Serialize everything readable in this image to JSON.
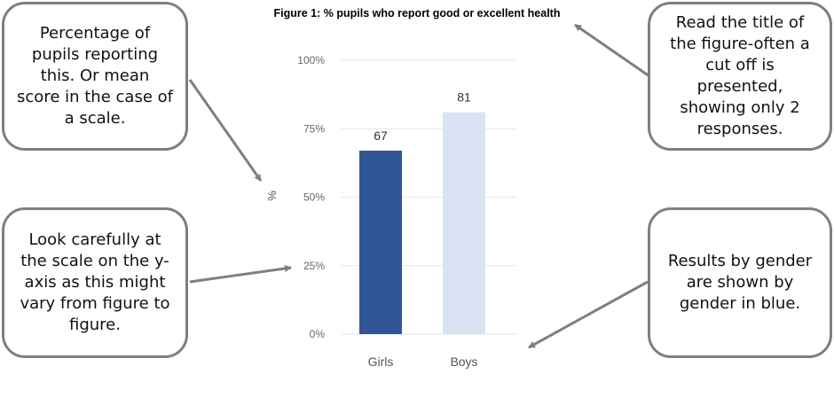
{
  "figure_title": "Figure 1: % pupils who report good or excellent health",
  "callouts": {
    "top_left": "Percentage of pupils reporting this. Or mean score in the case of a scale.",
    "bottom_left": "Look carefully at the scale on the y-axis as this might vary from figure to figure.",
    "top_right": "Read the title of the figure-often a cut off is presented, showing only 2 responses.",
    "bottom_right": "Results by gender are shown by gender in blue."
  },
  "chart_data": {
    "type": "bar",
    "title": "Figure 1: % pupils who report good or excellent health",
    "categories": [
      "Girls",
      "Boys"
    ],
    "values": [
      67,
      81
    ],
    "data_labels": [
      "67",
      "81"
    ],
    "colors": [
      "#2f5597",
      "#dae3f3"
    ],
    "ylabel": "%",
    "xlabel": "",
    "ylim": [
      0,
      100
    ],
    "yticks": [
      0,
      25,
      50,
      75,
      100
    ],
    "ytick_labels": [
      "0%",
      "25%",
      "50%",
      "75%",
      "100%"
    ],
    "grid": true,
    "legend": "none"
  }
}
